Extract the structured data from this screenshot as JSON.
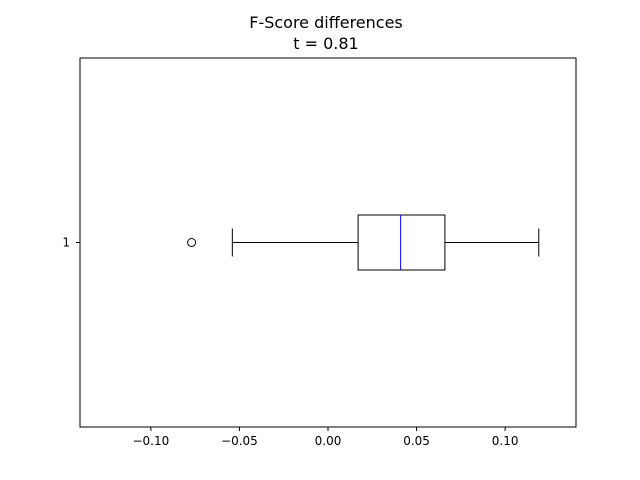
{
  "chart_data": {
    "type": "box",
    "orientation": "horizontal",
    "title": "F-Score differences",
    "subtitle": "t = 0.81",
    "xlim": [
      -0.14,
      0.14
    ],
    "xticks": [
      -0.1,
      -0.05,
      0.0,
      0.05,
      0.1
    ],
    "xtick_labels": [
      "−0.10",
      "−0.05",
      "0.00",
      "0.05",
      "0.10"
    ],
    "ytick_labels": [
      "1"
    ],
    "boxes": [
      {
        "label": "1",
        "whisker_low": -0.054,
        "q1": 0.017,
        "median": 0.041,
        "q3": 0.066,
        "whisker_high": 0.119,
        "fliers": [
          -0.077
        ]
      }
    ],
    "colors": {
      "box": "#000000",
      "median": "#0000ff",
      "whisker": "#000000"
    }
  }
}
